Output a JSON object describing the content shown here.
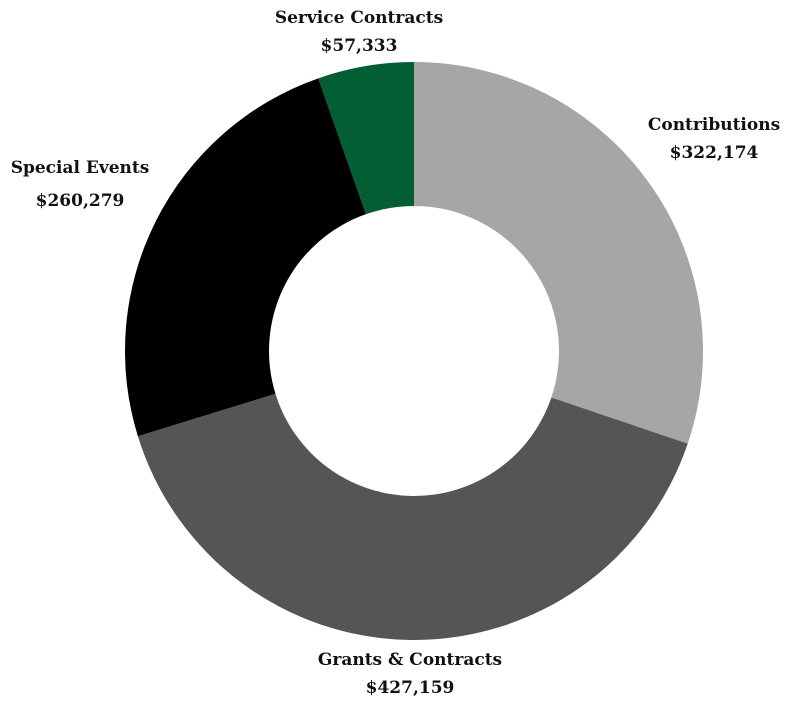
{
  "chart_data": {
    "type": "pie",
    "donut": true,
    "title": "",
    "start": "top (12 o'clock), clockwise",
    "slices": [
      {
        "label": "Contributions",
        "value_label": "$322,174",
        "value": 322174,
        "color": "#a6a6a6"
      },
      {
        "label": "Grants & Contracts",
        "value_label": "$427,159",
        "value": 427159,
        "color": "#555555"
      },
      {
        "label": "Special Events",
        "value_label": "$260,279",
        "value": 260279,
        "color": "#000000"
      },
      {
        "label": "Service Contracts",
        "value_label": "$57,333",
        "value": 57333,
        "color": "#035e33"
      }
    ]
  }
}
